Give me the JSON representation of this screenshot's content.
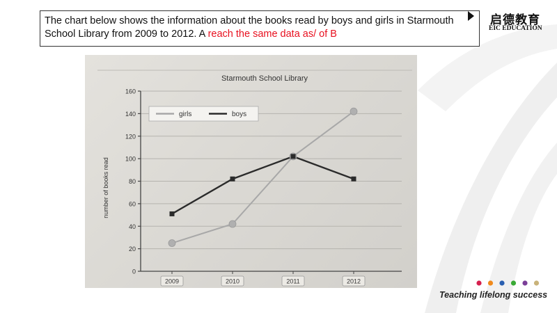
{
  "slide": {
    "intro_text": "The chart below shows the information about the books read by boys and girls in Starmouth School Library from 2009 to 2012.  A ",
    "intro_red": "reach the same data as/ of  B"
  },
  "brand": {
    "name_cn": "启德教育",
    "name_en": "EIC EDUCATION",
    "slogan": "Teaching lifelong success",
    "dot_colors": [
      "#d6204e",
      "#f08a1c",
      "#2a5fb0",
      "#3aaa35",
      "#7b3f98",
      "#c9b37a"
    ]
  },
  "chart_data": {
    "type": "line",
    "title": "Starmouth School Library",
    "ylabel": "number of books read",
    "xlabel": "",
    "categories": [
      "2009",
      "2010",
      "2011",
      "2012"
    ],
    "ylim": [
      0,
      160
    ],
    "yticks": [
      0,
      20,
      40,
      60,
      80,
      100,
      120,
      140,
      160
    ],
    "grid": true,
    "legend": "top-left",
    "series": [
      {
        "name": "girls",
        "values": [
          25,
          42,
          102,
          142
        ],
        "color": "#a8a8a8",
        "marker": "circle"
      },
      {
        "name": "boys",
        "values": [
          51,
          82,
          102,
          82
        ],
        "color": "#2b2b2b",
        "marker": "square"
      }
    ]
  }
}
